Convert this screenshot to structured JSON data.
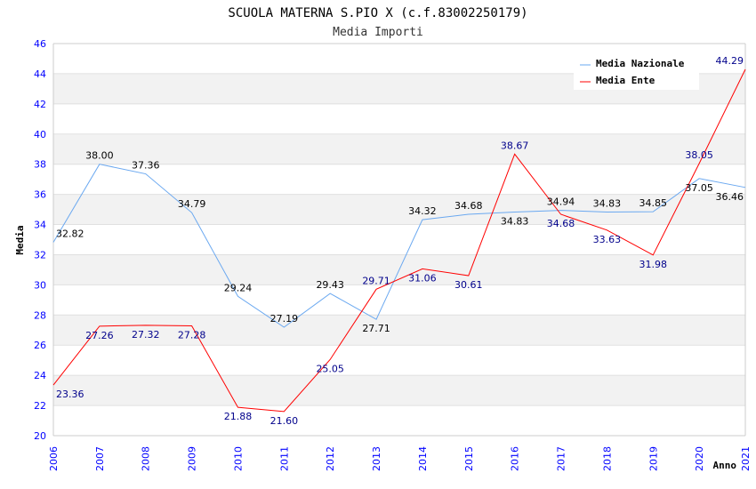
{
  "chart_data": {
    "type": "line",
    "title": "SCUOLA MATERNA S.PIO X (c.f.83002250179)",
    "subtitle": "Media Importi",
    "xlabel": "Anno",
    "ylabel": "Media",
    "ylim": [
      20,
      46
    ],
    "yticks": [
      "20",
      "22",
      "24",
      "26",
      "28",
      "30",
      "32",
      "34",
      "36",
      "38",
      "40",
      "42",
      "44",
      "46"
    ],
    "categories": [
      "2006",
      "2007",
      "2008",
      "2009",
      "2010",
      "2011",
      "2012",
      "2013",
      "2014",
      "2015",
      "2016",
      "2017",
      "2018",
      "2019",
      "2020",
      "2021"
    ],
    "legend_position": "top-right",
    "series": [
      {
        "name": "Media Nazionale",
        "color": "#6aa8f0",
        "label_color": "#000000",
        "values": [
          32.82,
          38.0,
          37.36,
          34.79,
          29.24,
          27.19,
          29.43,
          27.71,
          34.32,
          34.68,
          34.83,
          34.94,
          34.83,
          34.85,
          37.05,
          36.46
        ],
        "labels": [
          "32.82",
          "38.00",
          "37.36",
          "34.79",
          "29.24",
          "27.19",
          "29.43",
          "27.71",
          "34.32",
          "34.68",
          "34.83",
          "34.94",
          "34.83",
          "34.85",
          "37.05",
          "36.46"
        ]
      },
      {
        "name": "Media Ente",
        "color": "#ff0000",
        "label_color": "#00008b",
        "values": [
          23.36,
          27.26,
          27.32,
          27.28,
          21.88,
          21.6,
          25.05,
          29.71,
          31.06,
          30.61,
          38.67,
          34.68,
          33.63,
          31.98,
          38.05,
          44.29
        ],
        "labels": [
          "23.36",
          "27.26",
          "27.32",
          "27.28",
          "21.88",
          "21.60",
          "25.05",
          "29.71",
          "31.06",
          "30.61",
          "38.67",
          "34.68",
          "33.63",
          "31.98",
          "38.05",
          "44.29"
        ]
      }
    ]
  }
}
